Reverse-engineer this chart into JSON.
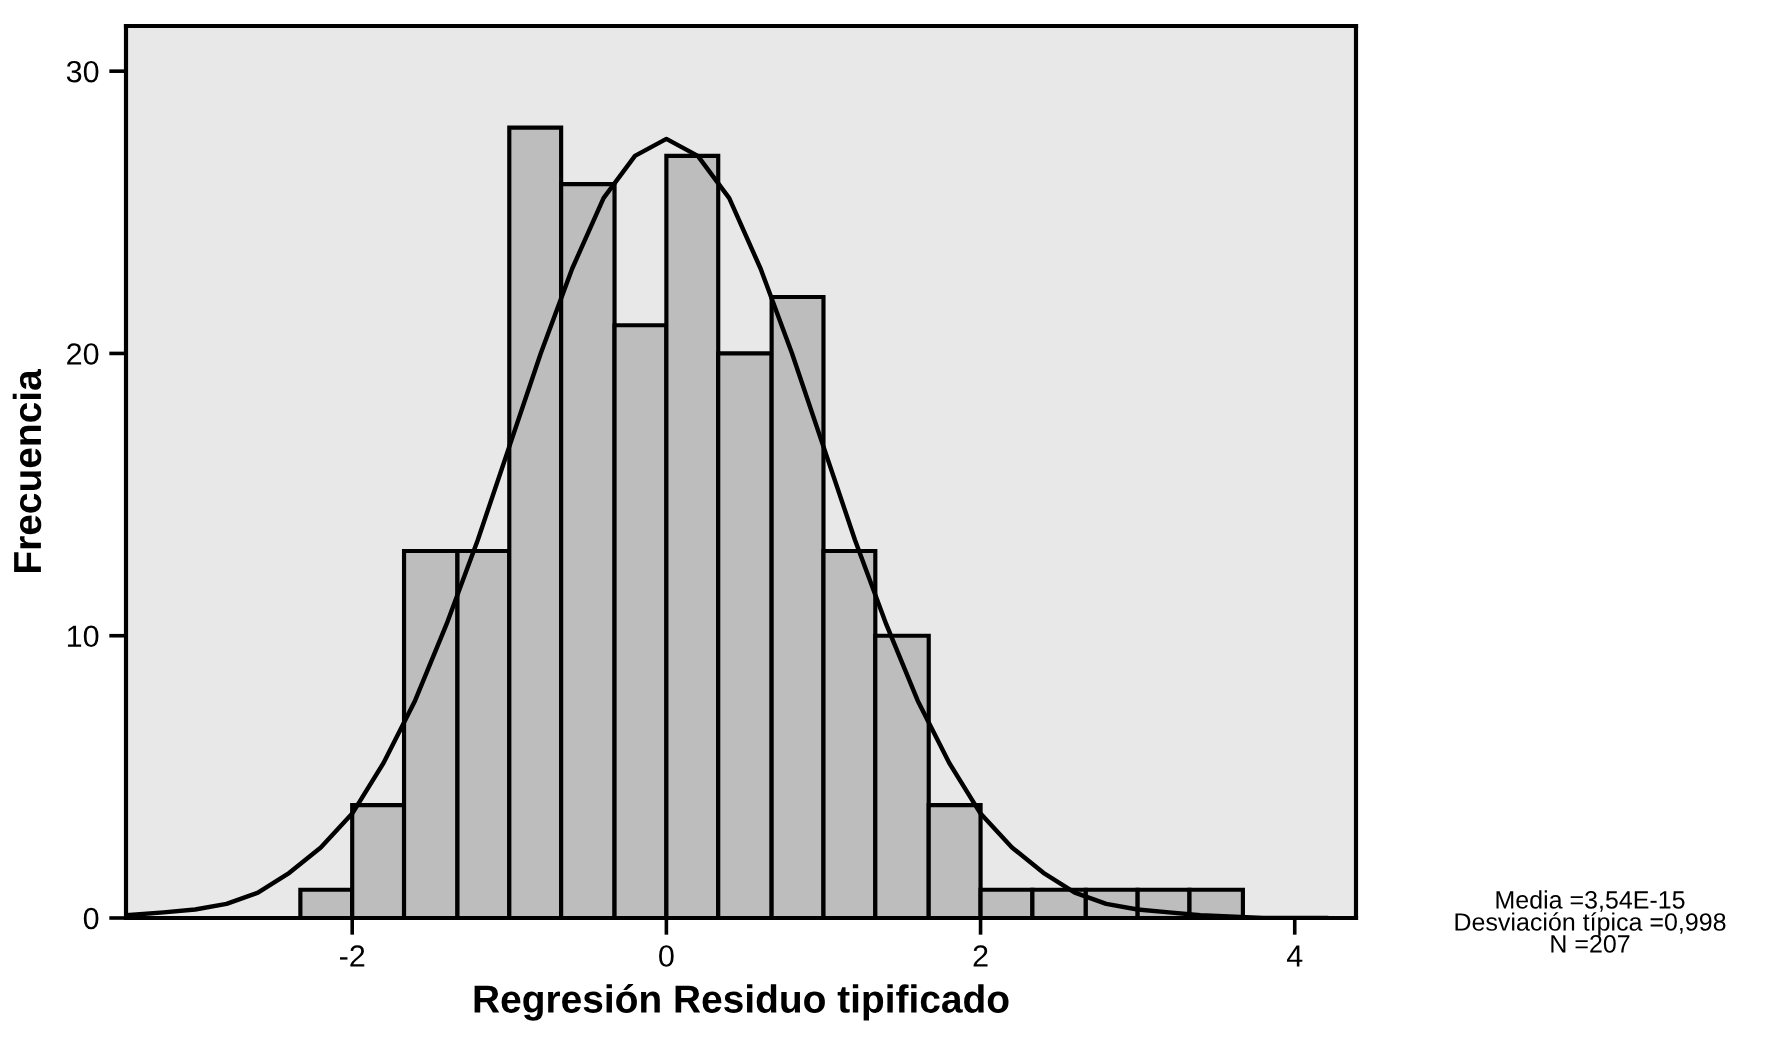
{
  "chart_data": {
    "type": "histogram",
    "xlabel": "Regresión Residuo tipificado",
    "ylabel": "Frecuencia",
    "bins": [
      -2.33,
      -2,
      -1.67,
      -1.33,
      -1,
      -0.67,
      -0.33,
      0,
      0.33,
      0.67,
      1,
      1.33,
      1.67,
      2,
      2.33,
      2.67,
      3,
      3.33,
      3.67
    ],
    "values": [
      1,
      4,
      13,
      13,
      28,
      26,
      21,
      27,
      20,
      22,
      13,
      10,
      4,
      1,
      1,
      1,
      1,
      1
    ],
    "color": "#bdbdbd",
    "series": [
      {
        "type": "line",
        "color": "#000000",
        "x": [
          -3.44,
          -3.2,
          -3.0,
          -2.8,
          -2.6,
          -2.4,
          -2.2,
          -2.0,
          -1.8,
          -1.6,
          -1.4,
          -1.2,
          -1.0,
          -0.8,
          -0.6,
          -0.4,
          -0.2,
          0,
          0.2,
          0.4,
          0.6,
          0.8,
          1.0,
          1.2,
          1.4,
          1.6,
          1.8,
          2.0,
          2.2,
          2.4,
          2.6,
          2.8,
          3.0,
          3.2,
          3.4,
          3.8,
          4.2
        ],
        "values": [
          0.1,
          0.2,
          0.3,
          0.5,
          0.9,
          1.6,
          2.5,
          3.7,
          5.5,
          7.7,
          10.4,
          13.4,
          16.7,
          20.0,
          23.0,
          25.5,
          27.0,
          27.6,
          27.0,
          25.5,
          23.0,
          20.0,
          16.7,
          13.4,
          10.4,
          7.7,
          5.5,
          3.7,
          2.5,
          1.6,
          0.9,
          0.5,
          0.3,
          0.2,
          0.1,
          0,
          0
        ]
      }
    ],
    "xlim": [
      -3.44,
      4.39
    ],
    "ylim": [
      0,
      31.6
    ],
    "xticks": [
      -2,
      0,
      2,
      4
    ],
    "yticks": [
      0,
      10,
      20,
      30
    ],
    "annotations": [
      "Media =3,54E-15",
      "Desviación típica =0,998",
      "N =207"
    ]
  }
}
